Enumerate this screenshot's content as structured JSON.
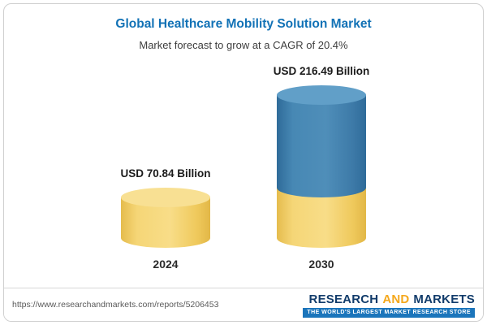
{
  "header": {
    "title": "Global Healthcare Mobility Solution Market",
    "subtitle": "Market forecast to grow at a CAGR of 20.4%"
  },
  "chart_data": {
    "type": "bar",
    "categories": [
      "2024",
      "2030"
    ],
    "values": [
      70.84,
      216.49
    ],
    "value_labels": [
      "USD 70.84 Billion",
      "USD 216.49 Billion"
    ],
    "unit": "USD Billion",
    "title": "Global Healthcare Mobility Solution Market",
    "subtitle": "Market forecast to grow at a CAGR of 20.4%",
    "cagr_percent": 20.4,
    "layout": "3d-cylinder bars; 2030 bar stacked: gold base equal to 2024 value, blue segment is growth; no axes or gridlines",
    "colors": {
      "base_segment": "#F2CF66",
      "base_segment_top": "#F8E093",
      "growth_segment": "#3A79A8",
      "growth_segment_top": "#619FC8",
      "title_accent": "#1272B6"
    }
  },
  "footer": {
    "url": "https://www.researchandmarkets.com/reports/5206453",
    "logo": {
      "word1": "RESEARCH",
      "word2": "AND",
      "word3": "MARKETS",
      "tagline": "THE WORLD'S LARGEST MARKET RESEARCH STORE"
    }
  }
}
